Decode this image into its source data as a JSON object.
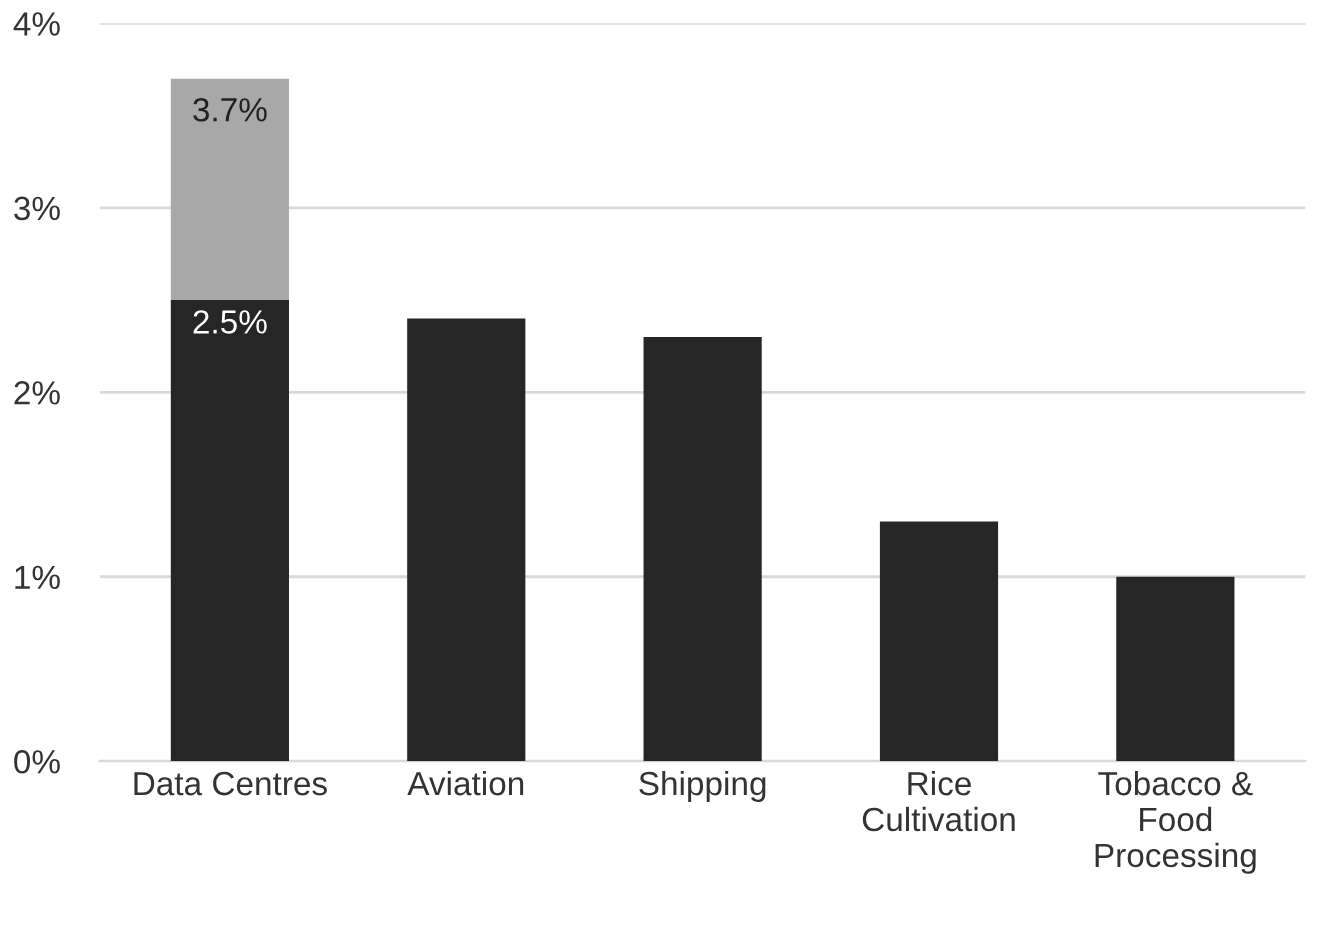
{
  "chart_data": {
    "type": "bar",
    "stacked": true,
    "categories": [
      "Data Centres",
      "Aviation",
      "Shipping",
      "Rice\nCultivation",
      "Tobacco &\nFood\nProcessing"
    ],
    "series": [
      {
        "color": "#262626",
        "values": [
          2.5,
          2.4,
          2.3,
          1.3,
          1.0
        ],
        "value_labels": [
          "2.5%",
          null,
          null,
          null,
          null
        ]
      },
      {
        "color": "#a8a8a8",
        "values": [
          1.2,
          null,
          null,
          null,
          null
        ]
      }
    ],
    "totals": [
      "3.7%",
      null,
      null,
      null,
      null
    ],
    "ylim": [
      0,
      4
    ],
    "yticks": [
      {
        "value": 0,
        "label": "0%"
      },
      {
        "value": 1,
        "label": "1%"
      },
      {
        "value": 2,
        "label": "2%"
      },
      {
        "value": 3,
        "label": "3%"
      },
      {
        "value": 4,
        "label": "4%"
      }
    ],
    "grid": "y"
  }
}
